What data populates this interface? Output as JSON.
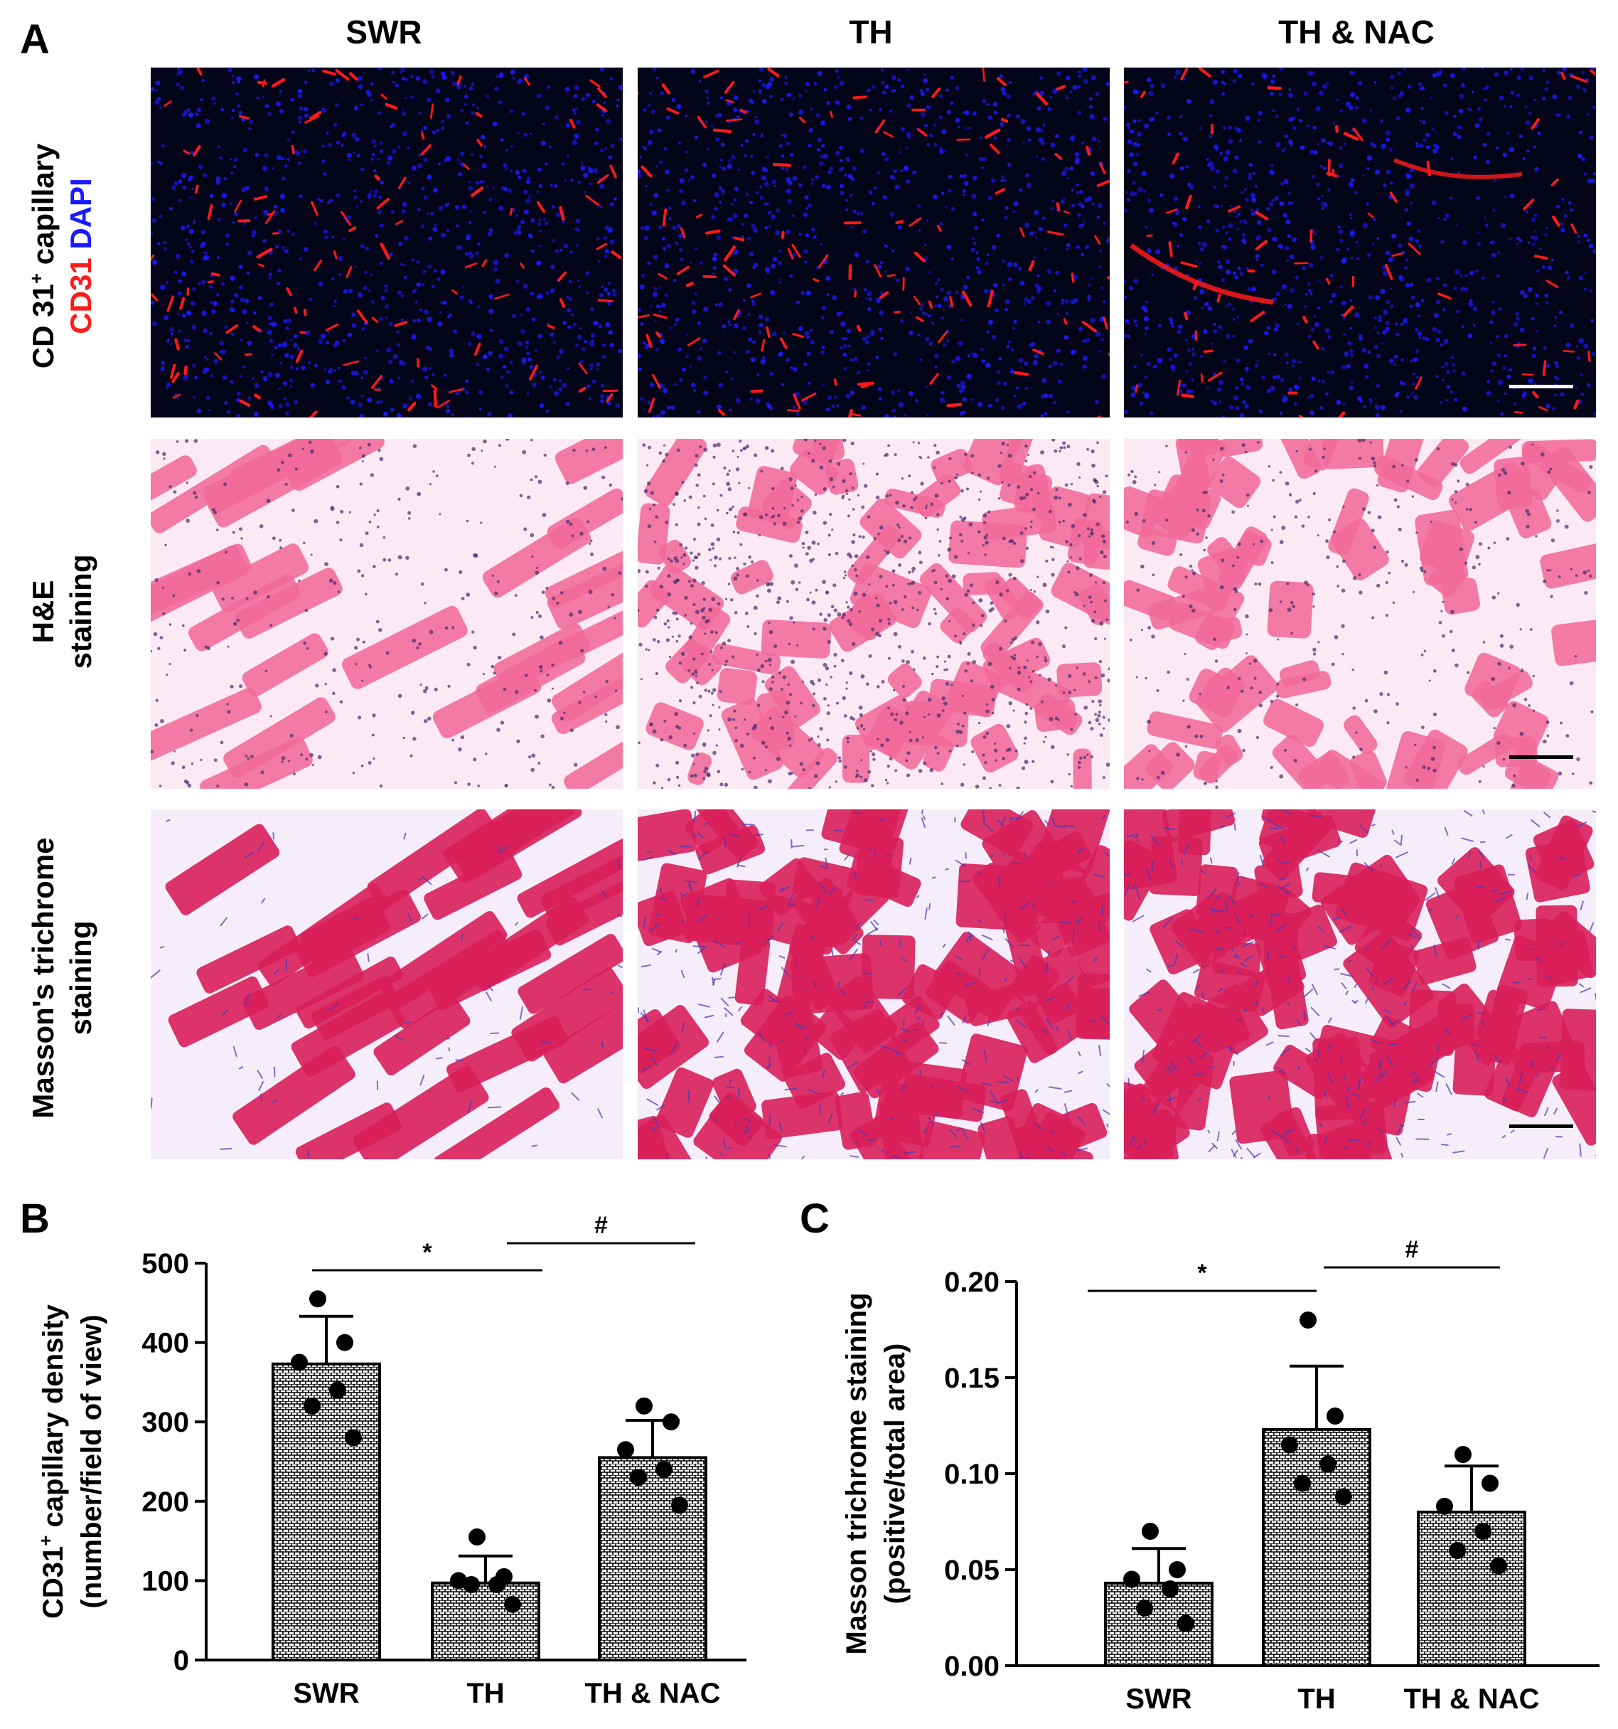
{
  "figure": {
    "panel_a_label": "A",
    "panel_b_label": "B",
    "panel_c_label": "C",
    "column_headers": [
      "SWR",
      "TH",
      "TH & NAC"
    ],
    "row_labels": {
      "cd31": {
        "line1": "CD 31",
        "line1_sup": "+",
        "line1_rest": " capillary",
        "line2_red": "CD31",
        "line2_blue": " DAPI"
      },
      "he": {
        "line1": "H&E",
        "line2": "staining"
      },
      "masson": {
        "line1": "Masson's trichrome",
        "line2": "staining"
      }
    },
    "colors": {
      "cd31_red": "#ff1a1a",
      "dapi_blue": "#1a1aff",
      "he_pink": "#f06a9a",
      "masson_red": "#d81e5a",
      "masson_blue": "#4a3ab0"
    }
  },
  "chart_data": [
    {
      "type": "bar",
      "panel": "B",
      "categories": [
        "SWR",
        "TH",
        "TH & NAC"
      ],
      "values": [
        373,
        97,
        255
      ],
      "error": [
        60,
        34,
        47
      ],
      "points": [
        [
          455,
          400,
          375,
          340,
          320,
          280
        ],
        [
          155,
          105,
          100,
          95,
          95,
          70
        ],
        [
          320,
          300,
          265,
          240,
          230,
          195
        ]
      ],
      "ylabel_line1": "CD31",
      "ylabel_sup": "+",
      "ylabel_line1_rest": " capillary density",
      "ylabel_line2": "(number/field of view)",
      "ylim": [
        0,
        500
      ],
      "yticks": [
        "0",
        "100",
        "200",
        "300",
        "400",
        "500"
      ],
      "significance": [
        {
          "from": 0,
          "to": 1,
          "label": "*"
        },
        {
          "from": 1,
          "to": 2,
          "label": "#"
        }
      ]
    },
    {
      "type": "bar",
      "panel": "C",
      "categories": [
        "SWR",
        "TH",
        "TH & NAC"
      ],
      "values": [
        0.043,
        0.123,
        0.08
      ],
      "error": [
        0.018,
        0.033,
        0.024
      ],
      "points": [
        [
          0.07,
          0.05,
          0.045,
          0.04,
          0.03,
          0.022
        ],
        [
          0.18,
          0.13,
          0.115,
          0.105,
          0.095,
          0.088
        ],
        [
          0.11,
          0.095,
          0.083,
          0.07,
          0.06,
          0.052
        ]
      ],
      "ylabel_line1": "Masson trichrome staining",
      "ylabel_line2": "(positive/total area)",
      "ylim": [
        0,
        0.2
      ],
      "yticks": [
        "0.00",
        "0.05",
        "0.10",
        "0.15",
        "0.20"
      ],
      "significance": [
        {
          "from": 0,
          "to": 1,
          "label": "*"
        },
        {
          "from": 1,
          "to": 2,
          "label": "#"
        }
      ]
    }
  ]
}
